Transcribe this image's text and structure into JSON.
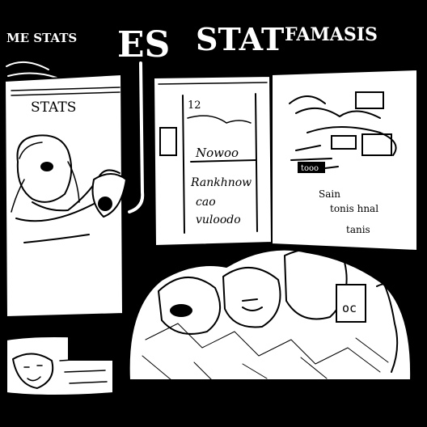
{
  "banner": {
    "left": "ME STATS",
    "mid_1": "ES",
    "mid_2": "STAT",
    "right": "FAMASIS"
  },
  "left_panel": {
    "label": "STATS"
  },
  "whiteboard": {
    "number": "12",
    "scribbles": [
      "Nowoo",
      "Rankhnow",
      "cao",
      "vuloodo"
    ]
  },
  "right_board": {
    "tag": "tooo",
    "lines": [
      "Sain",
      "tonis hnal",
      "tanis"
    ]
  },
  "mask_label": "oc",
  "colors": {
    "ink": "#000000",
    "paper": "#ffffff"
  }
}
